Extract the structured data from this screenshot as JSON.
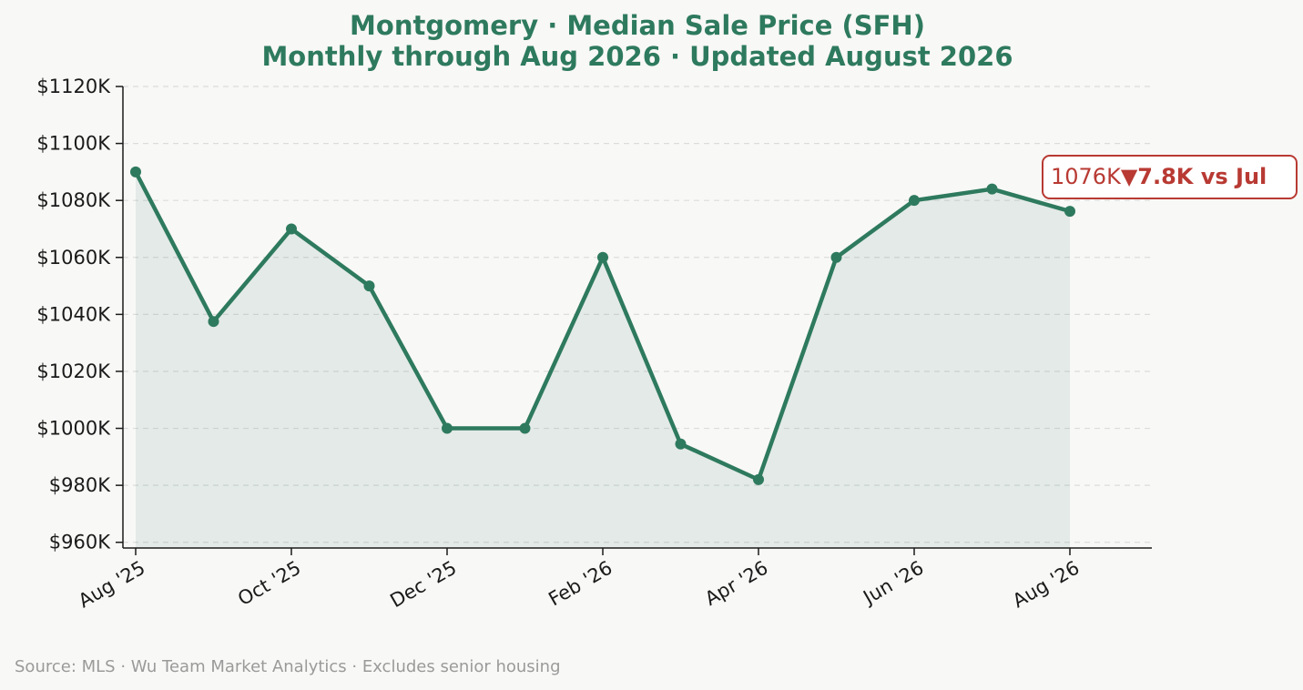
{
  "chart_data": {
    "type": "line",
    "title": "Montgomery  ·  Median Sale Price (SFH)",
    "subtitle": "Monthly through Aug 2026  ·  Updated August 2026",
    "x": [
      "2025-08",
      "2025-09",
      "2025-10",
      "2025-11",
      "2025-12",
      "2026-01",
      "2026-02",
      "2026-03",
      "2026-04",
      "2026-05",
      "2026-06",
      "2026-07",
      "2026-08"
    ],
    "x_tick_labels": [
      "Aug '25",
      "Oct '25",
      "Dec '25",
      "Feb '26",
      "Apr '26",
      "Jun '26",
      "Aug '26"
    ],
    "x_tick_months": [
      "2025-08",
      "2025-10",
      "2025-12",
      "2026-02",
      "2026-04",
      "2026-06",
      "2026-08"
    ],
    "series": [
      {
        "values": [
          1090,
          1037.5,
          1070,
          1050,
          1000,
          1000,
          1060,
          994.5,
          982,
          1060,
          1080,
          1084,
          1076.2
        ]
      }
    ],
    "y_unit": "$K",
    "ylim": [
      958,
      1120
    ],
    "y_ticks": [
      960,
      980,
      1000,
      1020,
      1040,
      1060,
      1080,
      1100,
      1120
    ],
    "y_tick_labels": [
      "$960K",
      "$980K",
      "$1000K",
      "$1020K",
      "$1040K",
      "$1060K",
      "$1080K",
      "$1100K",
      "$1120K"
    ],
    "grid": "horizontal dashed",
    "annotation": {
      "value_text": "1076K",
      "change_text": "▼7.8K vs Jul"
    },
    "colors": {
      "line": "#2e7a5e",
      "fill": "#2e7a5e",
      "title": "#2e7a5e",
      "annotation": "#b83a33",
      "background": "#f8f8f6",
      "grid": "#dcdcdc",
      "axis": "#1a1a1a"
    }
  },
  "footer": {
    "source": "Source: MLS · Wu Team Market Analytics · Excludes senior housing"
  }
}
